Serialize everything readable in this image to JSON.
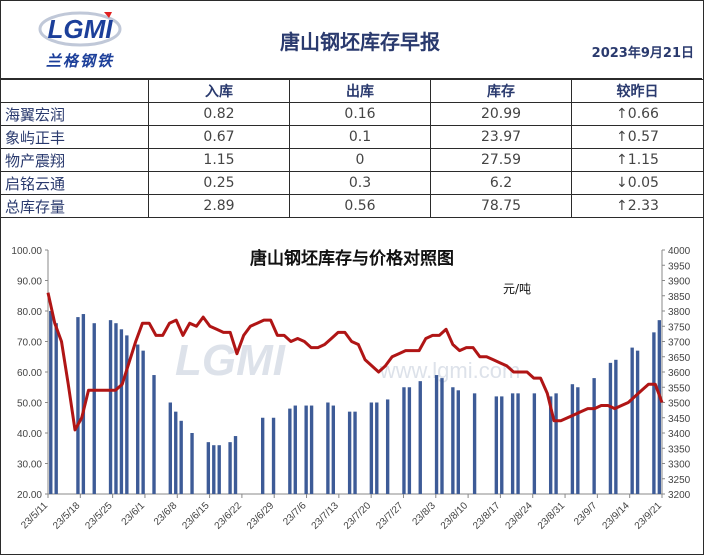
{
  "header": {
    "logo_text": "兰格钢铁",
    "logo_mark": "LGMI",
    "title": "唐山钢坯库存早报",
    "date": "2023年9月21日"
  },
  "table": {
    "columns": [
      "",
      "入库",
      "出库",
      "库存",
      "较昨日"
    ],
    "rows": [
      {
        "name": "海翼宏润",
        "in": "0.82",
        "out": "0.16",
        "stock": "20.99",
        "dir": "up",
        "arrow": "↑",
        "change": "0.66"
      },
      {
        "name": "象屿正丰",
        "in": "0.67",
        "out": "0.1",
        "stock": "23.97",
        "dir": "up",
        "arrow": "↑",
        "change": "0.57"
      },
      {
        "name": "物产震翔",
        "in": "1.15",
        "out": "0",
        "stock": "27.59",
        "dir": "up",
        "arrow": "↑",
        "change": "1.15"
      },
      {
        "name": "启铭云通",
        "in": "0.25",
        "out": "0.3",
        "stock": "6.2",
        "dir": "down",
        "arrow": "↓",
        "change": "0.05"
      },
      {
        "name": "总库存量",
        "in": "2.89",
        "out": "0.56",
        "stock": "78.75",
        "dir": "up",
        "arrow": "↑",
        "change": "2.33"
      }
    ]
  },
  "watermark": {
    "logo": "LGMI",
    "url": "www.lgmi.com"
  },
  "chart_data": {
    "type": "bar",
    "title": "唐山钢坯库存与价格对照图",
    "unit_label": "元/吨",
    "y_left": {
      "min": 20,
      "max": 100,
      "step": 10,
      "decimals": 2
    },
    "y_right": {
      "min": 3200,
      "max": 4000,
      "step": 50
    },
    "x_ticks": [
      "23/5/11",
      "23/5/18",
      "23/5/25",
      "23/6/1",
      "23/6/8",
      "23/6/15",
      "23/6/22",
      "23/6/29",
      "23/7/6",
      "23/7/13",
      "23/7/20",
      "23/7/27",
      "23/8/3",
      "23/8/10",
      "23/8/17",
      "23/8/24",
      "23/8/31",
      "23/9/7",
      "23/9/14",
      "23/9/21"
    ],
    "bar_color": "#3d5b97",
    "line_color": "#b01515",
    "series": [
      {
        "type": "bar",
        "axis": "left",
        "values": [
          80,
          76,
          null,
          null,
          null,
          78,
          79,
          null,
          76,
          null,
          null,
          77,
          76,
          74,
          72,
          null,
          69,
          67,
          null,
          59,
          null,
          null,
          50,
          47,
          44,
          null,
          40,
          null,
          null,
          37,
          36,
          36,
          null,
          37,
          39,
          null,
          null,
          null,
          null,
          45,
          null,
          45,
          null,
          null,
          48,
          49,
          null,
          49,
          49,
          null,
          null,
          50,
          49,
          null,
          null,
          47,
          47,
          null,
          null,
          50,
          50,
          null,
          51,
          null,
          null,
          55,
          55,
          null,
          57,
          null,
          null,
          59,
          58,
          null,
          55,
          54,
          null,
          null,
          53,
          null,
          null,
          null,
          52,
          52,
          null,
          53,
          53,
          null,
          null,
          53,
          null,
          null,
          52,
          53,
          null,
          null,
          56,
          55,
          null,
          null,
          58,
          null,
          null,
          63,
          64,
          null,
          null,
          68,
          67,
          null,
          null,
          73,
          77
        ]
      },
      {
        "type": "line",
        "axis": "right",
        "values": [
          3860,
          3760,
          3700,
          3560,
          3410,
          3450,
          3540,
          3540,
          3540,
          3540,
          3540,
          3560,
          3630,
          3700,
          3760,
          3760,
          3720,
          3720,
          3760,
          3770,
          3720,
          3760,
          3750,
          3780,
          3750,
          3740,
          3730,
          3730,
          3660,
          3720,
          3750,
          3760,
          3770,
          3770,
          3720,
          3720,
          3700,
          3710,
          3700,
          3680,
          3680,
          3690,
          3710,
          3730,
          3730,
          3700,
          3690,
          3640,
          3620,
          3600,
          3620,
          3650,
          3660,
          3670,
          3670,
          3670,
          3710,
          3720,
          3720,
          3740,
          3690,
          3670,
          3680,
          3680,
          3650,
          3650,
          3640,
          3630,
          3620,
          3600,
          3600,
          3600,
          3580,
          3580,
          3530,
          3440,
          3440,
          3450,
          3460,
          3470,
          3480,
          3480,
          3490,
          3490,
          3480,
          3490,
          3500,
          3520,
          3540,
          3560,
          3560,
          3500
        ]
      }
    ]
  }
}
